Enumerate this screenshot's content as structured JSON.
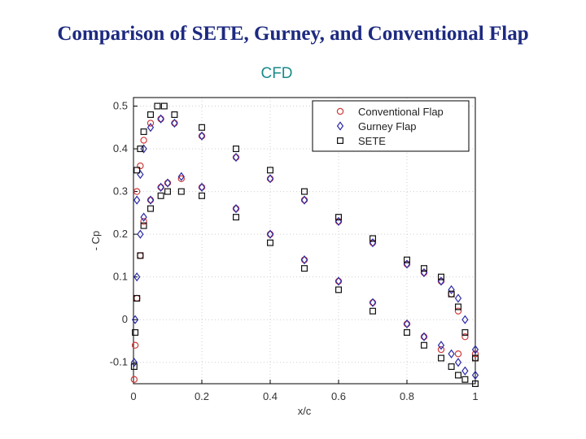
{
  "header": {
    "title": "Comparison of SETE, Gurney, and Conventional Flap",
    "subtitle": "CFD"
  },
  "colors": {
    "conventional": "#d03a3a",
    "gurney": "#2a2aa6",
    "sete": "#111111"
  },
  "chart_data": {
    "type": "scatter",
    "title": "",
    "xlabel": "x/c",
    "ylabel": "- Cp",
    "xlim": [
      0,
      1
    ],
    "ylim": [
      -0.15,
      0.52
    ],
    "xticks": [
      0,
      0.2,
      0.4,
      0.6,
      0.8,
      1
    ],
    "xtick_labels": [
      "0",
      "0.2",
      "0.4",
      "0.6",
      "0.8",
      "1"
    ],
    "yticks": [
      -0.1,
      0,
      0.1,
      0.2,
      0.3,
      0.4,
      0.5
    ],
    "ytick_labels": [
      "-0.1",
      "0",
      "0.1",
      "0.2",
      "0.3",
      "0.4",
      "0.5"
    ],
    "grid": true,
    "legend_position": "top-right",
    "series": [
      {
        "name": "Conventional Flap",
        "marker": "circle",
        "upper": {
          "x": [
            0.01,
            0.02,
            0.03,
            0.05,
            0.08,
            0.12,
            0.2,
            0.3,
            0.4,
            0.5,
            0.6,
            0.7,
            0.8,
            0.85,
            0.9,
            0.93,
            0.95,
            0.97,
            1.0
          ],
          "y": [
            0.3,
            0.36,
            0.42,
            0.46,
            0.47,
            0.46,
            0.43,
            0.38,
            0.33,
            0.28,
            0.23,
            0.18,
            0.13,
            0.11,
            0.09,
            0.06,
            0.02,
            -0.04,
            -0.08
          ]
        },
        "lower": {
          "x": [
            0.002,
            0.005,
            0.01,
            0.02,
            0.03,
            0.05,
            0.08,
            0.1,
            0.14,
            0.2,
            0.3,
            0.4,
            0.5,
            0.6,
            0.7,
            0.8,
            0.85,
            0.9,
            0.95,
            1.0
          ],
          "y": [
            -0.14,
            -0.06,
            0.05,
            0.15,
            0.23,
            0.28,
            0.31,
            0.32,
            0.33,
            0.31,
            0.26,
            0.2,
            0.14,
            0.09,
            0.04,
            -0.01,
            -0.04,
            -0.07,
            -0.08,
            -0.09
          ]
        }
      },
      {
        "name": "Gurney Flap",
        "marker": "diamond",
        "upper": {
          "x": [
            0.01,
            0.02,
            0.03,
            0.05,
            0.08,
            0.12,
            0.2,
            0.3,
            0.4,
            0.5,
            0.6,
            0.7,
            0.8,
            0.85,
            0.9,
            0.93,
            0.95,
            0.97,
            1.0
          ],
          "y": [
            0.28,
            0.34,
            0.4,
            0.45,
            0.47,
            0.46,
            0.43,
            0.38,
            0.33,
            0.28,
            0.23,
            0.18,
            0.13,
            0.11,
            0.09,
            0.07,
            0.05,
            0.0,
            -0.07
          ]
        },
        "lower": {
          "x": [
            0.002,
            0.005,
            0.01,
            0.02,
            0.03,
            0.05,
            0.08,
            0.1,
            0.14,
            0.2,
            0.3,
            0.4,
            0.5,
            0.6,
            0.7,
            0.8,
            0.85,
            0.9,
            0.93,
            0.95,
            0.97,
            1.0
          ],
          "y": [
            -0.1,
            0.0,
            0.1,
            0.2,
            0.24,
            0.28,
            0.31,
            0.32,
            0.335,
            0.31,
            0.26,
            0.2,
            0.14,
            0.09,
            0.04,
            -0.01,
            -0.04,
            -0.06,
            -0.08,
            -0.1,
            -0.12,
            -0.13
          ]
        }
      },
      {
        "name": "SETE",
        "marker": "square",
        "upper": {
          "x": [
            0.01,
            0.02,
            0.03,
            0.05,
            0.07,
            0.09,
            0.12,
            0.2,
            0.3,
            0.4,
            0.5,
            0.6,
            0.7,
            0.8,
            0.85,
            0.9,
            0.93,
            0.95,
            0.97,
            1.0
          ],
          "y": [
            0.35,
            0.4,
            0.44,
            0.48,
            0.5,
            0.5,
            0.48,
            0.45,
            0.4,
            0.35,
            0.3,
            0.24,
            0.19,
            0.14,
            0.12,
            0.1,
            0.06,
            0.03,
            -0.03,
            -0.09
          ]
        },
        "lower": {
          "x": [
            0.002,
            0.005,
            0.01,
            0.02,
            0.03,
            0.05,
            0.08,
            0.1,
            0.14,
            0.2,
            0.3,
            0.4,
            0.5,
            0.6,
            0.7,
            0.8,
            0.85,
            0.9,
            0.93,
            0.95,
            0.97,
            1.0
          ],
          "y": [
            -0.11,
            -0.03,
            0.05,
            0.15,
            0.22,
            0.26,
            0.29,
            0.3,
            0.3,
            0.29,
            0.24,
            0.18,
            0.12,
            0.07,
            0.02,
            -0.03,
            -0.06,
            -0.09,
            -0.11,
            -0.13,
            -0.14,
            -0.15
          ]
        }
      }
    ]
  }
}
